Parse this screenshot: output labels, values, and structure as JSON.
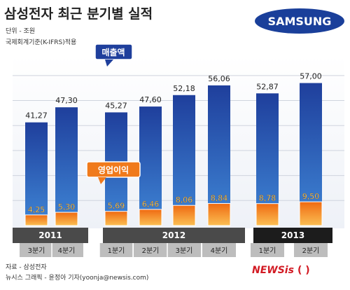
{
  "header": {
    "title": "삼성전자 최근 분기별 실적",
    "unit": "단위 - 조원",
    "standard": "국제회계기준(K-IFRS)적용",
    "logo_text": "SAMSUNG"
  },
  "legend": {
    "revenue_label": "매출액",
    "profit_label": "영업이익"
  },
  "footer": {
    "source": "자료 - 삼성전자",
    "credit": "뉴시스 그래픽 - 윤정아 기자(yoonja@newsis.com)",
    "brand_news": "NEWSis",
    "brand_paren": "( )"
  },
  "colors": {
    "revenue_dark": "#1f3f9c",
    "revenue_light": "#3f86d6",
    "profit_dark": "#ef6a12",
    "profit_light": "#fbbf53",
    "year_band": "#4a4a4a",
    "year_band_2013": "#1c1c1c",
    "quarter_band": "#bdbdbd",
    "logo_bg": "#1a3f9a",
    "news_red": "#d21b24"
  },
  "chart_data": {
    "type": "bar",
    "categories": [
      "3분기",
      "4분기",
      "1분기",
      "2분기",
      "3분기",
      "4분기",
      "1분기",
      "2분기"
    ],
    "groups": [
      {
        "year": "2011",
        "start": 0,
        "end": 1
      },
      {
        "year": "2012",
        "start": 2,
        "end": 5
      },
      {
        "year": "2013",
        "start": 6,
        "end": 7
      }
    ],
    "series": [
      {
        "name": "매출액",
        "values": [
          41.27,
          47.3,
          45.27,
          47.6,
          52.18,
          56.06,
          52.87,
          57.0
        ],
        "labels": [
          "41,27",
          "47,30",
          "45,27",
          "47,60",
          "52,18",
          "56,06",
          "52,87",
          "57,00"
        ]
      },
      {
        "name": "영업이익",
        "values": [
          4.25,
          5.3,
          5.69,
          6.46,
          8.06,
          8.84,
          8.78,
          9.5
        ],
        "labels": [
          "4,25",
          "5,30",
          "5,69",
          "6,46",
          "8,06",
          "8,84",
          "8,78",
          "9,50"
        ]
      }
    ],
    "ylim": [
      0,
      65
    ],
    "grid": true
  }
}
